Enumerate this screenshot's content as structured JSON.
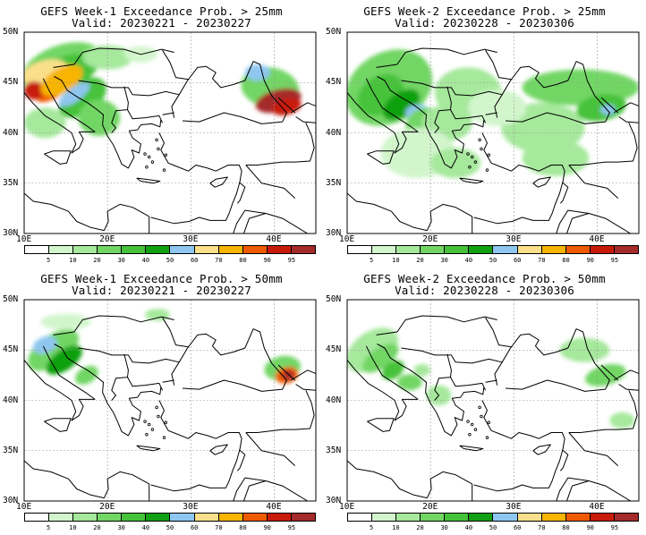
{
  "panels": [
    {
      "title": "GEFS Week-1 Exceedance Prob. > 25mm",
      "valid": "Valid: 20230221 - 20230227"
    },
    {
      "title": "GEFS Week-2 Exceedance Prob. > 25mm",
      "valid": "Valid: 20230228 - 20230306"
    },
    {
      "title": "GEFS Week-1 Exceedance Prob. > 50mm",
      "valid": "Valid: 20230221 - 20230227"
    },
    {
      "title": "GEFS Week-2 Exceedance Prob. > 50mm",
      "valid": "Valid: 20230228 - 20230306"
    }
  ],
  "lat_labels": [
    "50N",
    "45N",
    "40N",
    "35N",
    "30N"
  ],
  "lon_labels": [
    "10E",
    "20E",
    "30E",
    "40E"
  ],
  "colorbar": {
    "labels": [
      "5",
      "10",
      "20",
      "30",
      "40",
      "50",
      "60",
      "70",
      "80",
      "90",
      "95"
    ],
    "colors": [
      "#ffffff",
      "#d2f5cc",
      "#a6e89c",
      "#72d665",
      "#46c23a",
      "#11a011",
      "#8fc6f0",
      "#fae08a",
      "#f7b400",
      "#ee5a00",
      "#c81a0a",
      "#a52a2a"
    ]
  }
}
